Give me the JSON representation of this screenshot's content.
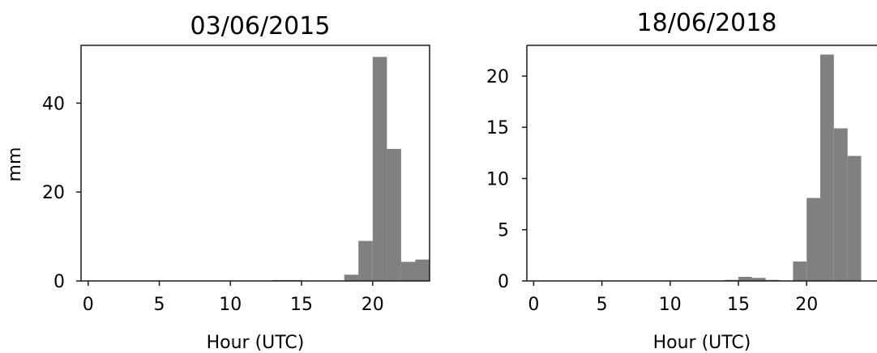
{
  "chart_data": [
    {
      "type": "bar",
      "title": "03/06/2015",
      "xlabel": "Hour (UTC)",
      "ylabel": "mm",
      "xticks": [
        "0",
        "5",
        "10",
        "15",
        "20"
      ],
      "yticks": [
        "0",
        "20",
        "40"
      ],
      "ylim": [
        0,
        53
      ],
      "xlim": [
        -0.5,
        24
      ],
      "bar_color": "#808080",
      "x": [
        0,
        1,
        2,
        3,
        4,
        5,
        6,
        7,
        8,
        9,
        10,
        11,
        12,
        13,
        14,
        15,
        16,
        17,
        18,
        19,
        20,
        21,
        22,
        23
      ],
      "values": [
        0,
        0,
        0,
        0,
        0,
        0,
        0,
        0,
        0,
        0,
        0,
        0,
        0,
        0.2,
        0.2,
        0,
        0,
        0,
        1.4,
        9,
        50.4,
        29.7,
        4.3,
        4.8
      ]
    },
    {
      "type": "bar",
      "title": "18/06/2018",
      "xlabel": "Hour (UTC)",
      "ylabel": "",
      "xticks": [
        "0",
        "5",
        "10",
        "15",
        "20"
      ],
      "yticks": [
        "0",
        "5",
        "10",
        "15",
        "20"
      ],
      "ylim": [
        0,
        23
      ],
      "xlim": [
        -0.5,
        24
      ],
      "bar_color": "#808080",
      "x": [
        0,
        1,
        2,
        3,
        4,
        5,
        6,
        7,
        8,
        9,
        10,
        11,
        12,
        13,
        14,
        15,
        16,
        17,
        18,
        19,
        20,
        21,
        22,
        23
      ],
      "values": [
        0,
        0,
        0,
        0,
        0,
        0,
        0,
        0,
        0,
        0,
        0,
        0,
        0,
        0,
        0.1,
        0.4,
        0.3,
        0.1,
        0,
        1.9,
        8.1,
        22.1,
        14.9,
        12.2
      ]
    }
  ]
}
